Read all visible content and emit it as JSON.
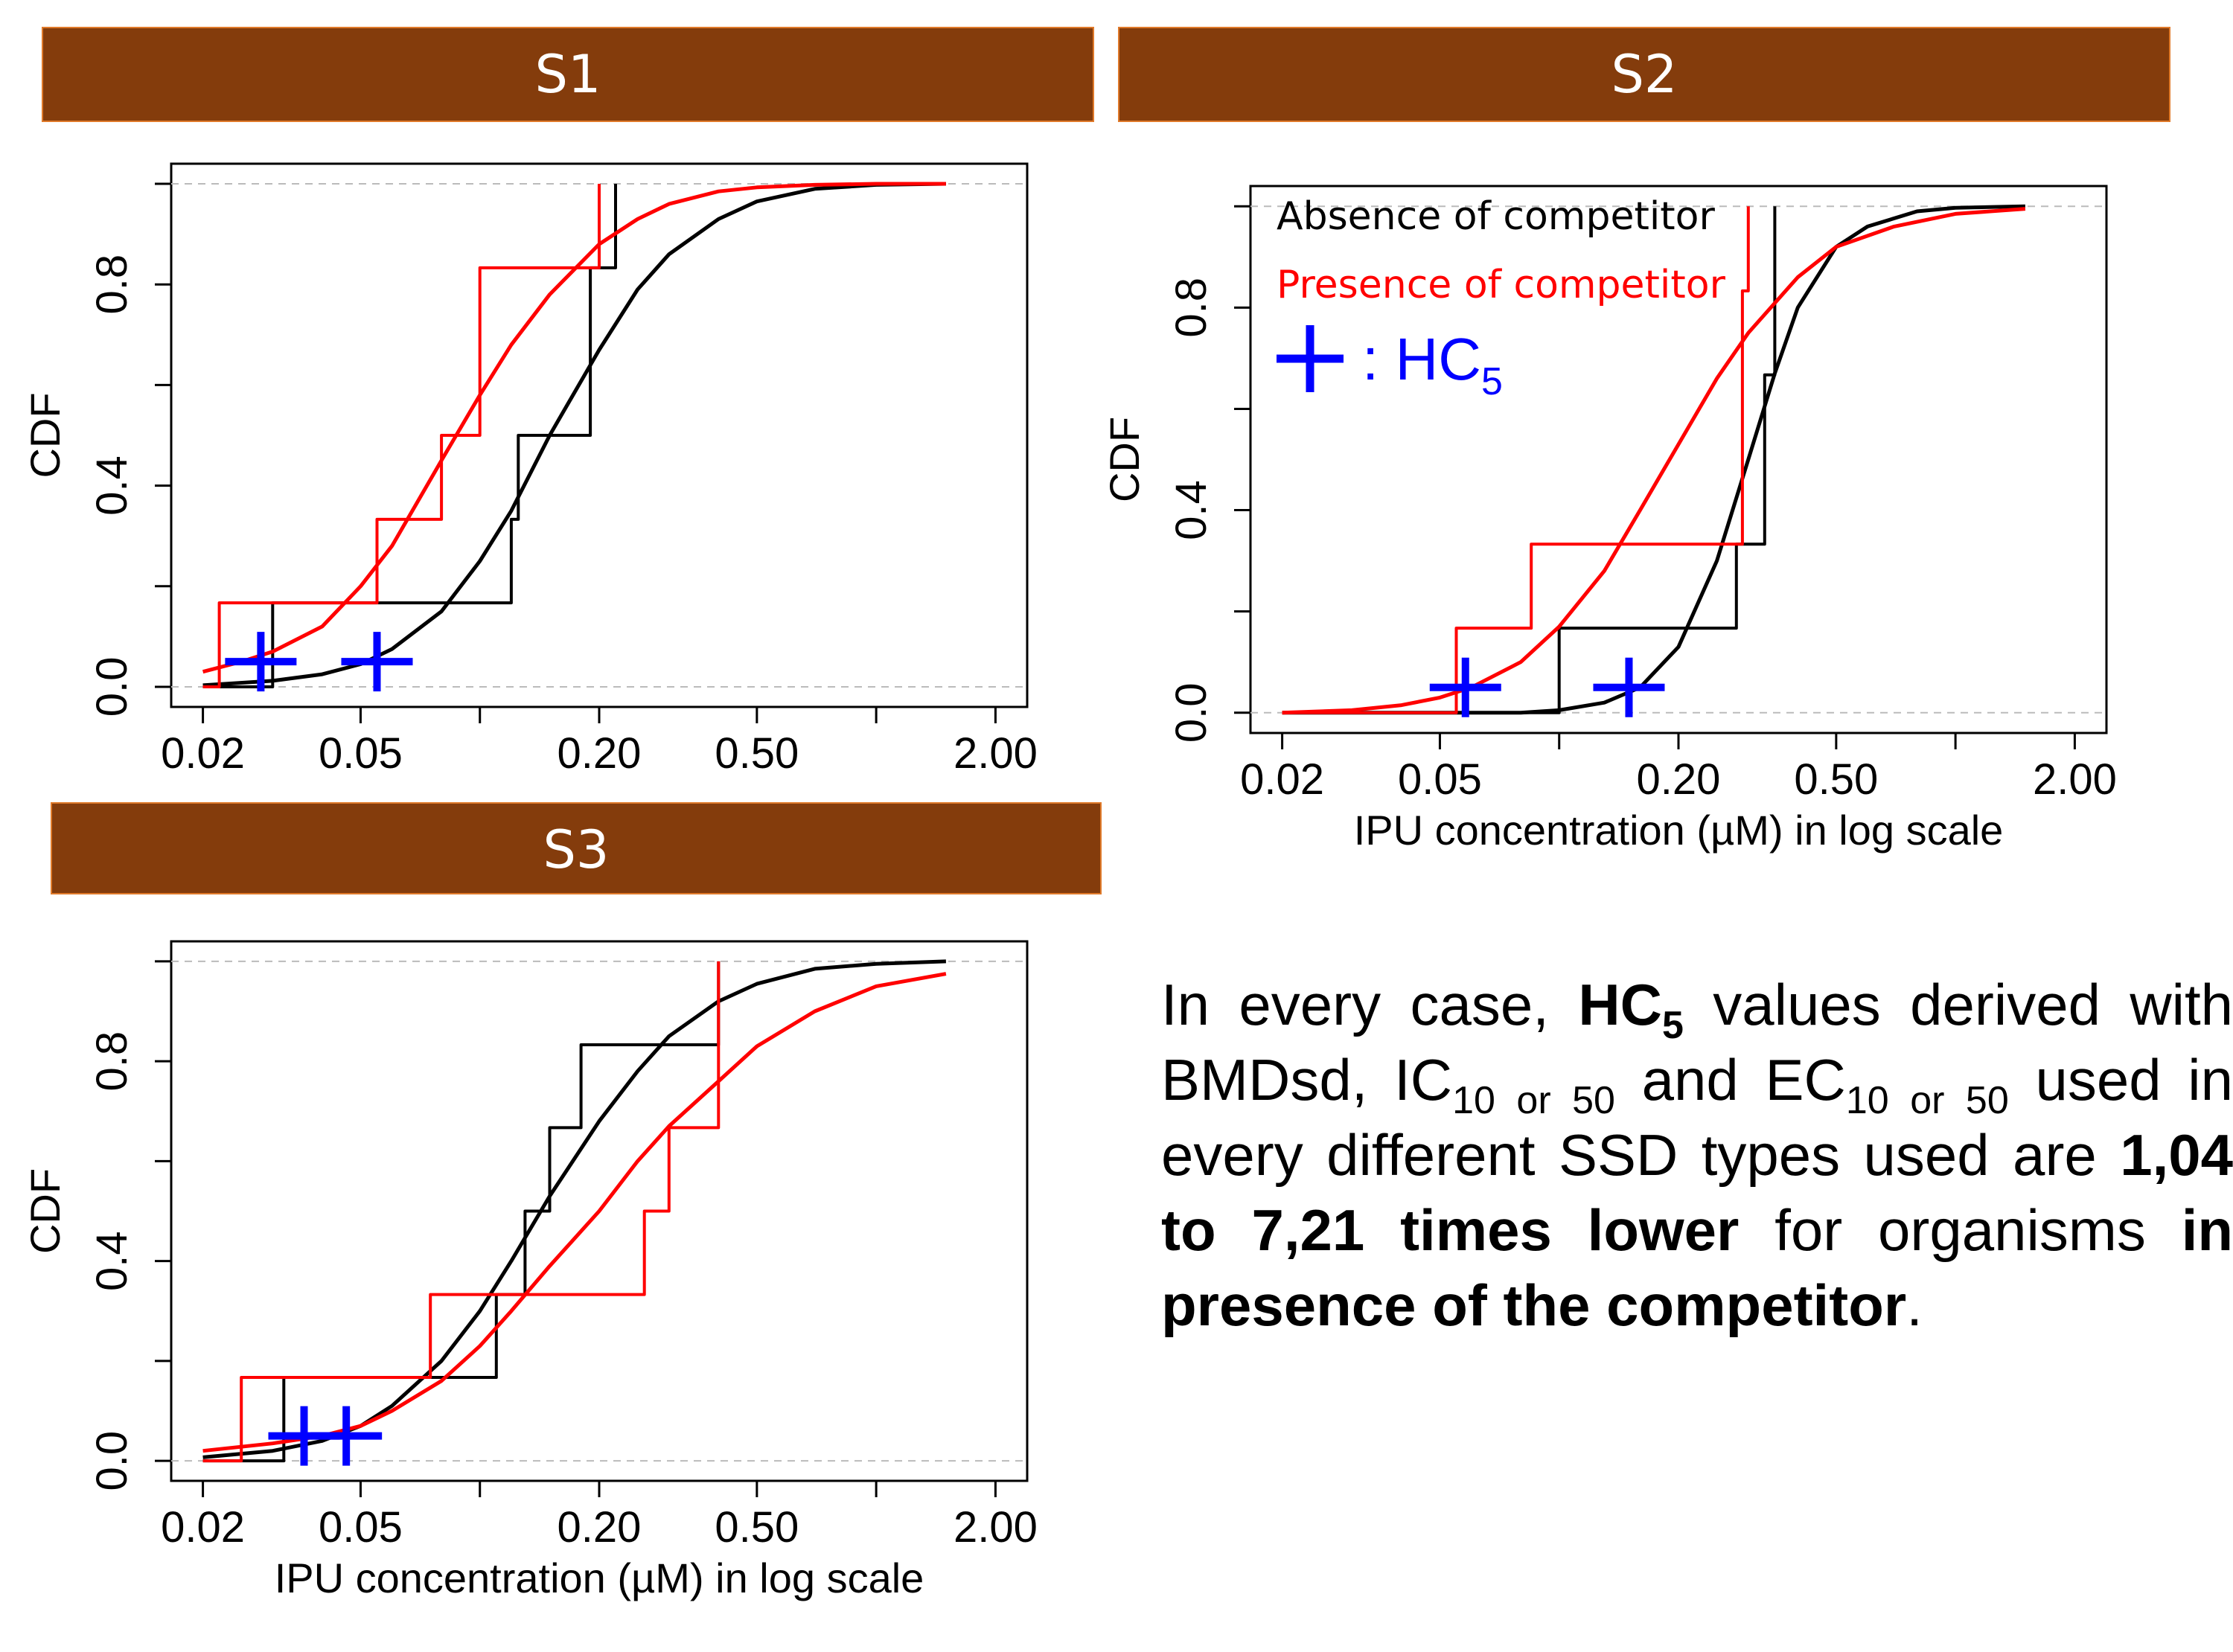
{
  "panels": [
    {
      "id": "S1",
      "title": "S1",
      "xlabel": "",
      "ylabel": "CDF",
      "xticks": [
        "0.02",
        "0.05",
        "0.20",
        "0.50",
        "2.00"
      ],
      "yticks": [
        "0.0",
        "0.4",
        "0.8"
      ]
    },
    {
      "id": "S2",
      "title": "S2",
      "xlabel": "IPU concentration (µM) in log scale",
      "ylabel": "CDF",
      "xticks": [
        "0.02",
        "0.05",
        "0.20",
        "0.50",
        "2.00"
      ],
      "yticks": [
        "0.0",
        "0.4",
        "0.8"
      ],
      "legend": {
        "absence": "Absence of competitor",
        "presence": "Presence of competitor",
        "hc5_label": ": HC",
        "hc5_sub": "5"
      }
    },
    {
      "id": "S3",
      "title": "S3",
      "xlabel": "IPU concentration (µM) in log scale",
      "ylabel": "CDF",
      "xticks": [
        "0.02",
        "0.05",
        "0.20",
        "0.50",
        "2.00"
      ],
      "yticks": [
        "0.0",
        "0.4",
        "0.8"
      ]
    }
  ],
  "colors": {
    "absence": "#000000",
    "presence": "#ff0000",
    "hc5": "#0000ff",
    "header_bg": "#843c0c",
    "header_border": "#e07a2a"
  },
  "note": {
    "p1": "In every case,",
    "hc": "HC",
    "hc_sub": "5",
    "p2": "values derived with BMDsd, IC",
    "ic_sub": "10 or 50",
    "p3": "and EC",
    "ec_sub": "10 or 50",
    "p4": "used in  every different SSD types used are",
    "b1": "1,04 to 7,21 times lower",
    "p5": "for organisms",
    "b2": "in presence of the competitor",
    "p6": "."
  },
  "chart_data": [
    {
      "type": "line",
      "panel": "S1",
      "xscale": "log",
      "xlim": [
        0.02,
        2.0
      ],
      "ylim": [
        0.0,
        1.0
      ],
      "xlabel": "",
      "ylabel": "CDF",
      "series": [
        {
          "key": "absence",
          "kind": "step",
          "x": [
            0.02,
            0.03,
            0.03,
            0.12,
            0.12,
            0.125,
            0.125,
            0.19,
            0.19,
            0.22,
            0.22
          ],
          "y": [
            0.0,
            0.0,
            0.167,
            0.167,
            0.333,
            0.333,
            0.5,
            0.5,
            0.833,
            0.833,
            1.0
          ]
        },
        {
          "key": "absence",
          "kind": "curve",
          "x": [
            0.02,
            0.03,
            0.04,
            0.05,
            0.06,
            0.08,
            0.1,
            0.12,
            0.15,
            0.2,
            0.25,
            0.3,
            0.4,
            0.5,
            0.7,
            1.0,
            1.5
          ],
          "y": [
            0.003,
            0.012,
            0.025,
            0.045,
            0.075,
            0.15,
            0.25,
            0.35,
            0.5,
            0.67,
            0.79,
            0.86,
            0.93,
            0.965,
            0.99,
            0.998,
            1.0
          ]
        },
        {
          "key": "presence",
          "kind": "step",
          "x": [
            0.02,
            0.022,
            0.022,
            0.055,
            0.055,
            0.08,
            0.08,
            0.1,
            0.1,
            0.2,
            0.2
          ],
          "y": [
            0.0,
            0.0,
            0.167,
            0.167,
            0.333,
            0.333,
            0.5,
            0.5,
            0.833,
            0.833,
            1.0
          ]
        },
        {
          "key": "presence",
          "kind": "curve",
          "x": [
            0.02,
            0.025,
            0.03,
            0.04,
            0.05,
            0.06,
            0.08,
            0.1,
            0.12,
            0.15,
            0.2,
            0.25,
            0.3,
            0.4,
            0.5,
            0.7,
            1.0,
            1.5
          ],
          "y": [
            0.03,
            0.05,
            0.07,
            0.12,
            0.2,
            0.28,
            0.45,
            0.58,
            0.68,
            0.78,
            0.88,
            0.93,
            0.96,
            0.985,
            0.993,
            0.998,
            1.0,
            1.0
          ]
        }
      ],
      "hc5": [
        0.028,
        0.055
      ],
      "hc5_cdf": 0.05
    },
    {
      "type": "line",
      "panel": "S2",
      "xscale": "log",
      "xlim": [
        0.02,
        2.0
      ],
      "ylim": [
        0.0,
        1.0
      ],
      "xlabel": "IPU concentration (µM) in log scale",
      "ylabel": "CDF",
      "series": [
        {
          "key": "absence",
          "kind": "step",
          "x": [
            0.02,
            0.1,
            0.1,
            0.28,
            0.28,
            0.33,
            0.33,
            0.35,
            0.35
          ],
          "y": [
            0.0,
            0.0,
            0.167,
            0.167,
            0.333,
            0.333,
            0.667,
            0.667,
            1.0
          ]
        },
        {
          "key": "absence",
          "kind": "curve",
          "x": [
            0.02,
            0.08,
            0.1,
            0.13,
            0.16,
            0.2,
            0.25,
            0.3,
            0.35,
            0.4,
            0.5,
            0.6,
            0.8,
            1.0,
            1.5
          ],
          "y": [
            0.0,
            0.0,
            0.005,
            0.02,
            0.05,
            0.13,
            0.3,
            0.5,
            0.67,
            0.8,
            0.92,
            0.96,
            0.99,
            0.997,
            1.0
          ]
        },
        {
          "key": "presence",
          "kind": "step",
          "x": [
            0.02,
            0.055,
            0.055,
            0.085,
            0.085,
            0.29,
            0.29,
            0.3,
            0.3
          ],
          "y": [
            0.0,
            0.0,
            0.167,
            0.167,
            0.333,
            0.333,
            0.833,
            0.833,
            1.0
          ]
        },
        {
          "key": "presence",
          "kind": "curve",
          "x": [
            0.02,
            0.03,
            0.04,
            0.05,
            0.06,
            0.08,
            0.1,
            0.13,
            0.16,
            0.2,
            0.25,
            0.3,
            0.4,
            0.5,
            0.7,
            1.0,
            1.5
          ],
          "y": [
            0.0,
            0.005,
            0.015,
            0.03,
            0.05,
            0.1,
            0.17,
            0.28,
            0.4,
            0.53,
            0.66,
            0.75,
            0.86,
            0.92,
            0.96,
            0.985,
            0.995
          ]
        }
      ],
      "hc5": [
        0.058,
        0.15
      ],
      "hc5_cdf": 0.05
    },
    {
      "type": "line",
      "panel": "S3",
      "xscale": "log",
      "xlim": [
        0.02,
        2.0
      ],
      "ylim": [
        0.0,
        1.0
      ],
      "xlabel": "IPU concentration (µM) in log scale",
      "ylabel": "CDF",
      "series": [
        {
          "key": "absence",
          "kind": "step",
          "x": [
            0.02,
            0.032,
            0.032,
            0.11,
            0.11,
            0.13,
            0.13,
            0.15,
            0.15,
            0.18,
            0.18,
            0.4,
            0.4
          ],
          "y": [
            0.0,
            0.0,
            0.167,
            0.167,
            0.333,
            0.333,
            0.5,
            0.5,
            0.667,
            0.667,
            0.833,
            0.833,
            1.0
          ]
        },
        {
          "key": "absence",
          "kind": "curve",
          "x": [
            0.02,
            0.03,
            0.04,
            0.05,
            0.06,
            0.08,
            0.1,
            0.12,
            0.15,
            0.2,
            0.25,
            0.3,
            0.4,
            0.5,
            0.7,
            1.0,
            1.5
          ],
          "y": [
            0.007,
            0.02,
            0.04,
            0.07,
            0.11,
            0.2,
            0.3,
            0.4,
            0.53,
            0.68,
            0.78,
            0.85,
            0.92,
            0.955,
            0.985,
            0.995,
            1.0
          ]
        },
        {
          "key": "presence",
          "kind": "step",
          "x": [
            0.02,
            0.025,
            0.025,
            0.075,
            0.075,
            0.26,
            0.26,
            0.3,
            0.3,
            0.4,
            0.4
          ],
          "y": [
            0.0,
            0.0,
            0.167,
            0.167,
            0.333,
            0.333,
            0.5,
            0.5,
            0.667,
            0.667,
            1.0
          ]
        },
        {
          "key": "presence",
          "kind": "curve",
          "x": [
            0.02,
            0.03,
            0.04,
            0.05,
            0.06,
            0.08,
            0.1,
            0.12,
            0.15,
            0.2,
            0.25,
            0.3,
            0.4,
            0.5,
            0.7,
            1.0,
            1.5
          ],
          "y": [
            0.02,
            0.035,
            0.05,
            0.07,
            0.1,
            0.16,
            0.23,
            0.3,
            0.39,
            0.5,
            0.6,
            0.67,
            0.76,
            0.83,
            0.9,
            0.95,
            0.975
          ]
        }
      ],
      "hc5": [
        0.036,
        0.046
      ],
      "hc5_cdf": 0.05
    }
  ]
}
